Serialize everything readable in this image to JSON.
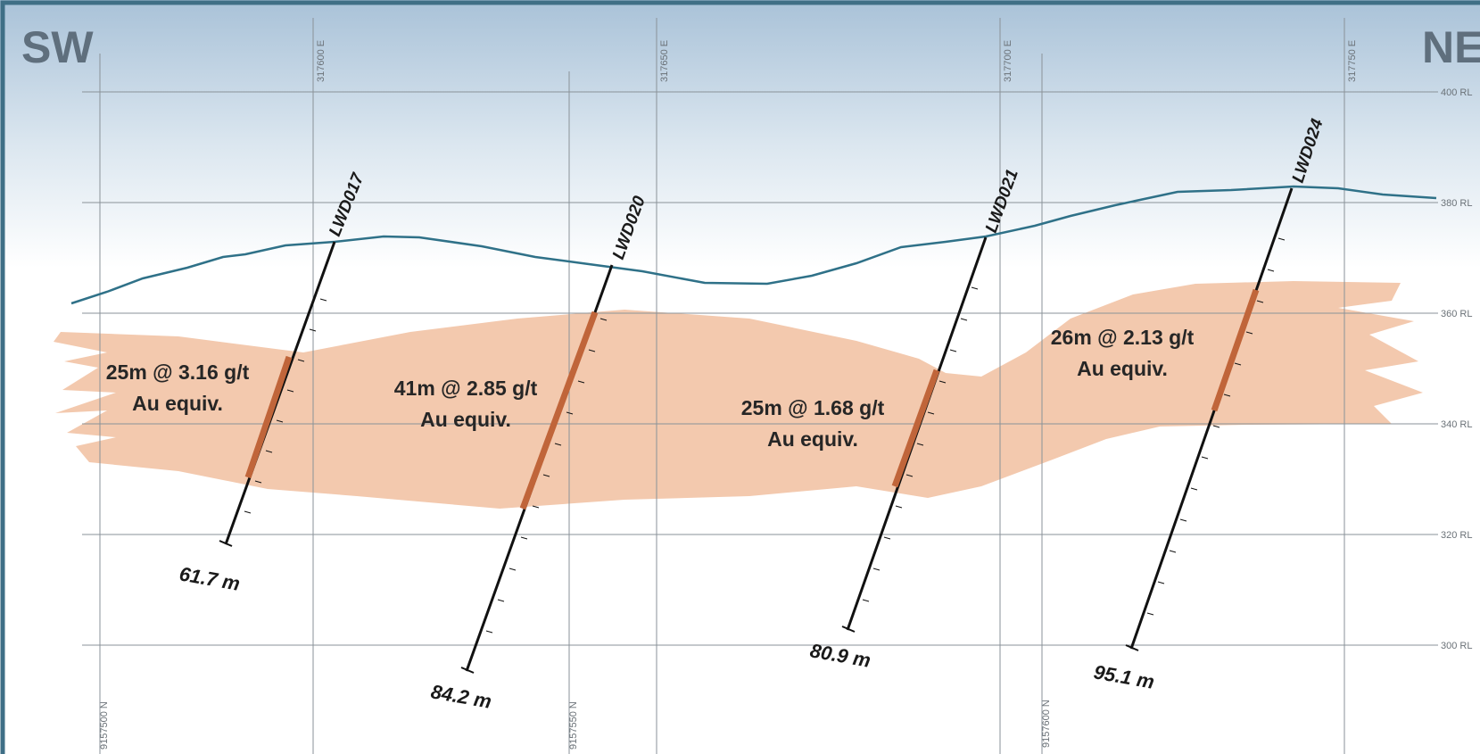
{
  "direction": {
    "left": "SW",
    "right": "NE"
  },
  "easting_labels": [
    "317600 E",
    "317650 E",
    "317700 E",
    "317750 E"
  ],
  "northing_labels": [
    "9157500 N",
    "9157550 N",
    "9157600 N"
  ],
  "rl_labels": [
    "400 RL",
    "380 RL",
    "360 RL",
    "340 RL",
    "320 RL",
    "300 RL"
  ],
  "drillholes": [
    {
      "id": "LWD017",
      "depth_label": "61.7 m",
      "intercept": [
        "25m @ 3.16 g/t",
        "Au equiv."
      ]
    },
    {
      "id": "LWD020",
      "depth_label": "84.2 m",
      "intercept": [
        "41m @ 2.85 g/t",
        "Au equiv."
      ]
    },
    {
      "id": "LWD021",
      "depth_label": "80.9 m",
      "intercept": [
        "25m @ 1.68 g/t",
        "Au equiv."
      ]
    },
    {
      "id": "LWD024",
      "depth_label": "95.1 m",
      "intercept": [
        "26m @ 2.13 g/t",
        "Au equiv."
      ]
    }
  ],
  "colors": {
    "border": "#3f6f86",
    "sky_top": "#a9c2d8",
    "topo_line": "#2f7188",
    "ore_body": "#f3c9ae",
    "mineralised": "#c0653a",
    "grid": "#8a9298",
    "hole": "#111111"
  }
}
